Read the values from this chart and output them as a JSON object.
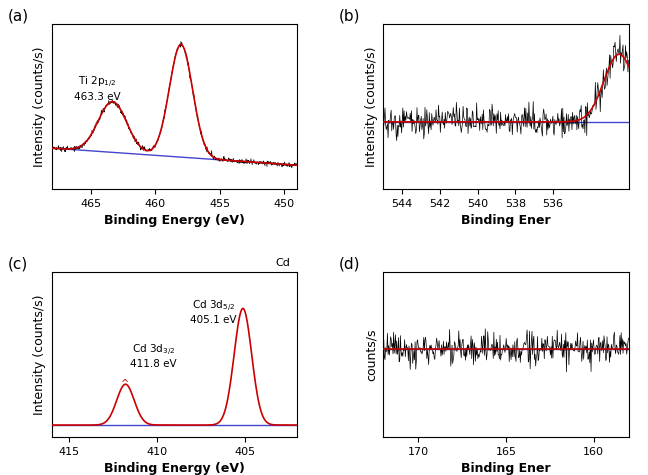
{
  "panel_a": {
    "label": "(a)",
    "xlabel": "Binding Energy (eV)",
    "ylabel": "Intensity (counts/s)",
    "xlim": [
      468,
      449
    ],
    "xticks": [
      465,
      460,
      455,
      450
    ],
    "noise_amplitude": 0.08
  },
  "panel_b": {
    "label": "(b)",
    "xlabel": "Binding Ener",
    "ylabel": "Intensity (counts/s)",
    "xlim": [
      545,
      532
    ],
    "xticks": [
      544,
      542,
      540,
      538,
      536
    ],
    "noise_amplitude": 0.04
  },
  "panel_c": {
    "label": "(c)",
    "xlabel": "Binding Energy (eV)",
    "ylabel": "Intensity (counts/s)",
    "xlim": [
      416,
      402
    ],
    "xticks": [
      415,
      410,
      405
    ],
    "corner_label": "Cd",
    "noise_amplitude": 0.0
  },
  "panel_d": {
    "label": "(d)",
    "xlabel": "Binding Ener",
    "ylabel": "counts/s",
    "xlim": [
      172,
      158
    ],
    "xticks": [
      170,
      165,
      160
    ],
    "noise_amplitude": 0.03
  },
  "line_color_raw": "#000000",
  "line_color_fit": "#cc0000",
  "line_color_bg": "#4444cc",
  "bg_color": "#ffffff",
  "label_fontsize": 11,
  "axis_fontsize": 9,
  "tick_fontsize": 8
}
